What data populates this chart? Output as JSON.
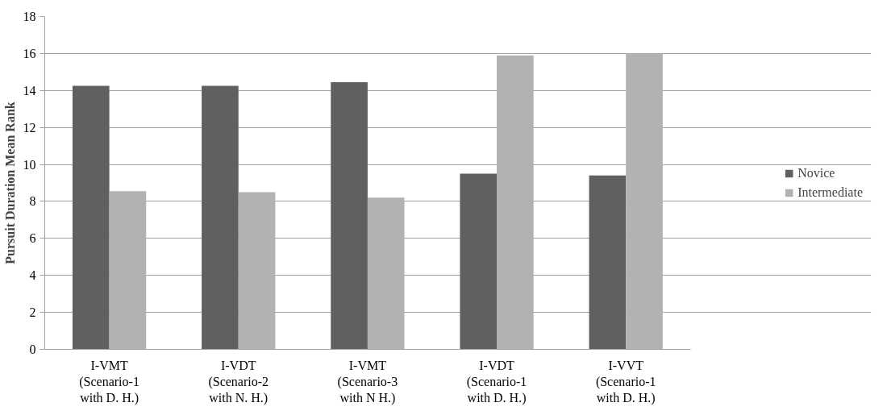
{
  "chart_data": {
    "type": "bar",
    "ylabel": "Pursuit Duration Mean Rank",
    "categories": [
      "I-VMT\n(Scenario-1\nwith D. H.)",
      "I-VDT\n(Scenario-2\nwith N. H.)",
      "I-VMT\n(Scenario-3\nwith N H.)",
      "I-VDT\n(Scenario-1\nwith D. H.)",
      "I-VVT\n(Scenario-1\nwith D. H.)"
    ],
    "series": [
      {
        "name": "Novice",
        "color": "#606060",
        "values": [
          14.25,
          14.25,
          14.45,
          9.5,
          9.4
        ]
      },
      {
        "name": "Intermediate",
        "color": "#b2b2b2",
        "values": [
          8.55,
          8.5,
          8.2,
          15.9,
          16.0
        ]
      }
    ],
    "ylim": [
      0,
      18
    ],
    "yticks": [
      0,
      2,
      4,
      6,
      8,
      10,
      12,
      14,
      16,
      18
    ],
    "grid": "y",
    "legend": "right"
  }
}
